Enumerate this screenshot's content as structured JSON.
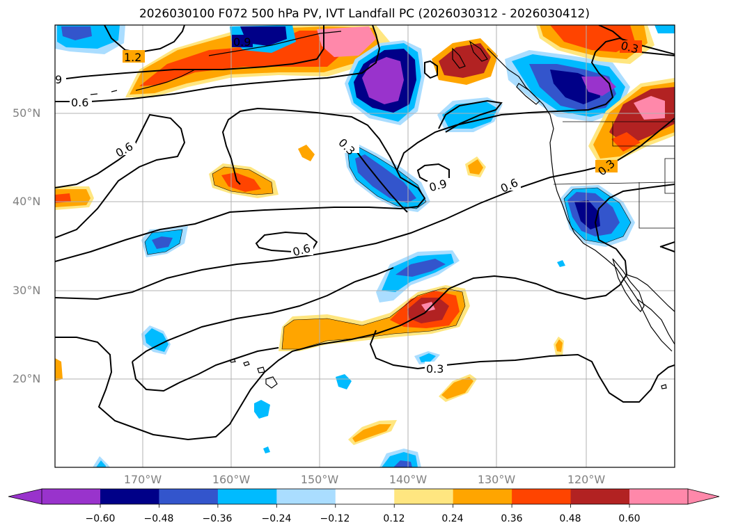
{
  "title": "2026030100 F072 500 hPa PV, IVT Landfall PC (2026030312 - 2026030412)",
  "lat_labels": [
    "50°N",
    "40°N",
    "30°N",
    "20°N"
  ],
  "lon_labels": [
    "170°W",
    "160°W",
    "150°W",
    "140°W",
    "130°W",
    "120°W"
  ],
  "contour_labels": [
    "1.2",
    "0.9",
    "9",
    "0.6",
    "0.6",
    "0.3",
    "0.9",
    "0.6",
    "0.6",
    "0.3",
    "0.3",
    "0.3"
  ],
  "colorbar": {
    "ticks": [
      "−0.60",
      "−0.48",
      "−0.36",
      "−0.24",
      "−0.12",
      "0.12",
      "0.24",
      "0.36",
      "0.48",
      "0.60"
    ],
    "colors": [
      "#9933cc",
      "#000088",
      "#3355cc",
      "#00bbff",
      "#aaddff",
      "#ffffff",
      "#ffe680",
      "#ffa500",
      "#ff4400",
      "#b22222",
      "#ff88aa"
    ]
  }
}
